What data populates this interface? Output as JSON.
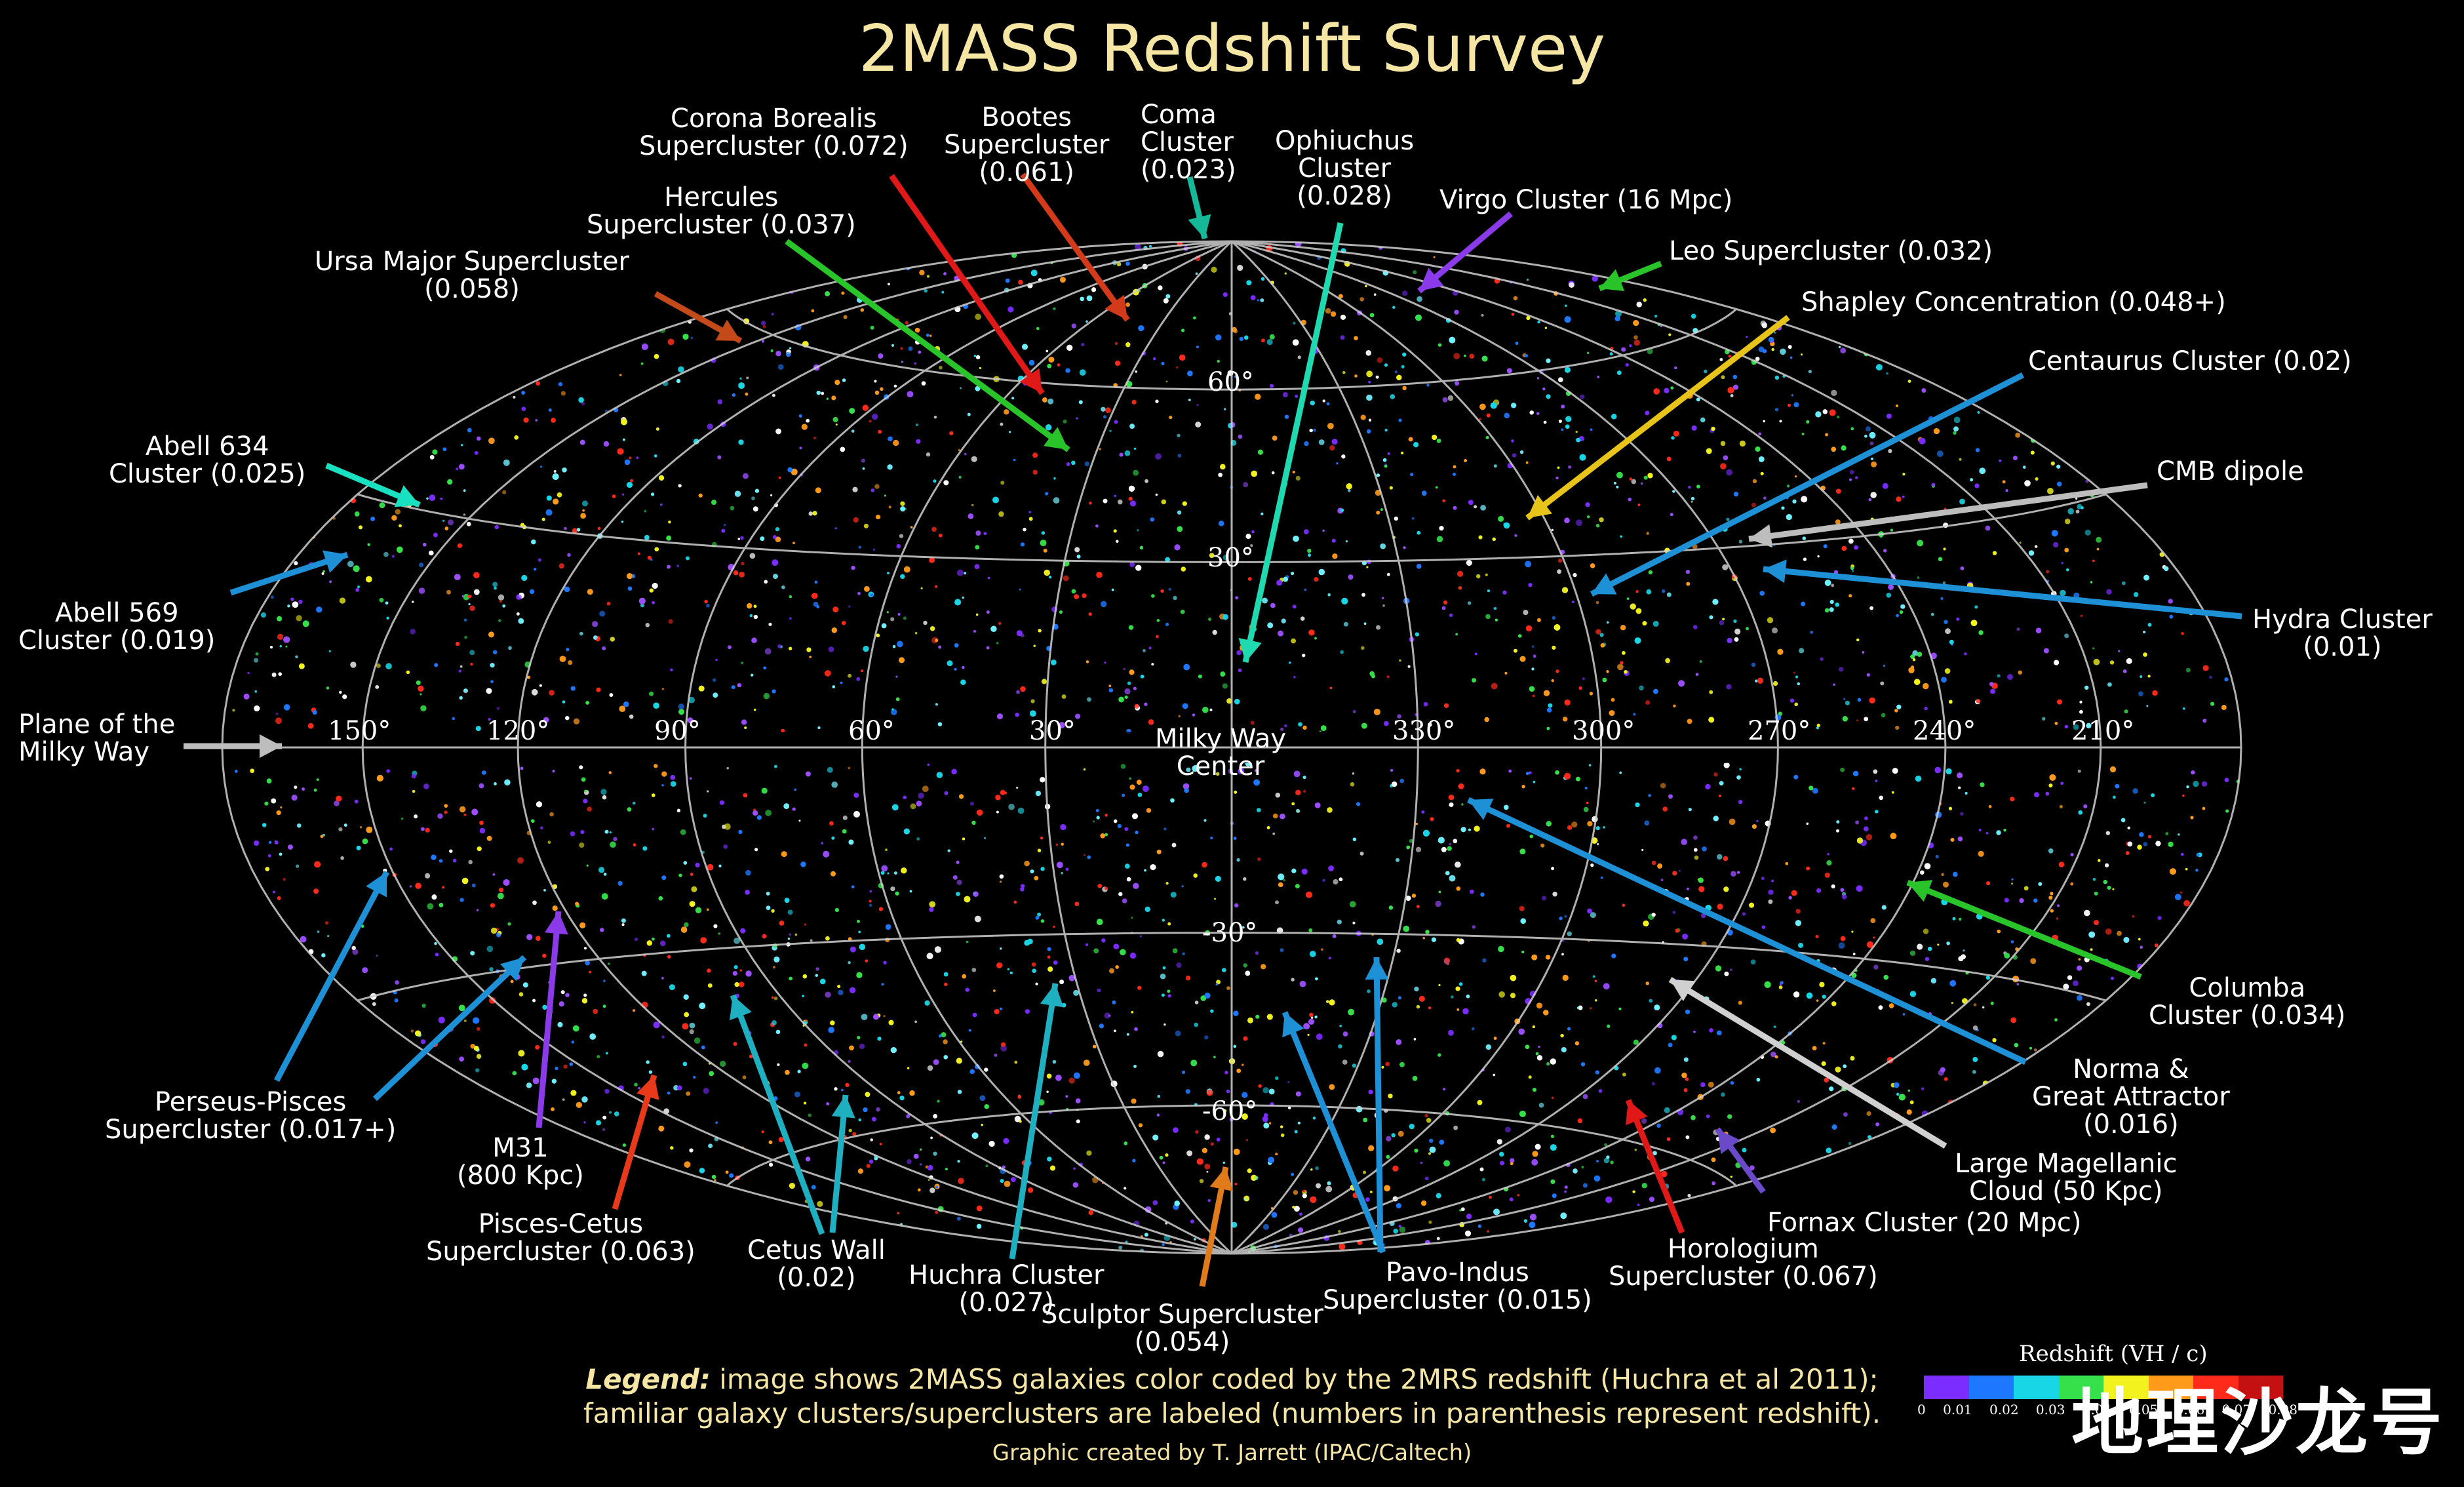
{
  "title": "2MASS Redshift Survey",
  "labels": {
    "corona_borealis": "Corona Borealis\nSupercluster (0.072)",
    "bootes": "Bootes\nSupercluster\n(0.061)",
    "coma": "Coma\nCluster\n(0.023)",
    "ophiuchus": "Ophiuchus\nCluster\n(0.028)",
    "virgo": "Virgo Cluster (16 Mpc)",
    "hercules": "Hercules\nSupercluster (0.037)",
    "leo": "Leo Supercluster (0.032)",
    "ursa_major": "Ursa Major Supercluster\n(0.058)",
    "shapley": "Shapley Concentration (0.048+)",
    "centaurus": "Centaurus Cluster (0.02)",
    "abell634": "Abell 634\nCluster (0.025)",
    "cmb": "CMB dipole",
    "abell569": "Abell 569\nCluster (0.019)",
    "hydra": "Hydra Cluster\n(0.01)",
    "plane": "Plane of the\nMilky Way",
    "milky_way_center": "Milky Way\nCenter",
    "columba": "Columba\nCluster (0.034)",
    "norma": "Norma &\nGreat Attractor\n(0.016)",
    "perseus": "Perseus-Pisces\nSupercluster (0.017+)",
    "m31": "M31\n(800 Kpc)",
    "lmc": "Large Magellanic\nCloud (50 Kpc)",
    "pisces_cetus": "Pisces-Cetus\nSupercluster (0.063)",
    "fornax": "Fornax Cluster (20 Mpc)",
    "cetus_wall": "Cetus Wall\n(0.02)",
    "huchra": "Huchra Cluster\n(0.027)",
    "pavo": "Pavo-Indus\nSupercluster (0.015)",
    "horologium": "Horologium\nSupercluster (0.067)",
    "sculptor": "Sculptor Supercluster\n(0.054)"
  },
  "ticks": {
    "lon": [
      "150°",
      "120°",
      "90°",
      "60°",
      "30°",
      "330°",
      "300°",
      "270°",
      "240°",
      "210°"
    ],
    "lat": [
      "60°",
      "30°",
      "-30°",
      "-60°"
    ]
  },
  "legend": {
    "bold": "Legend:",
    "line1": " image shows 2MASS galaxies color coded by the 2MRS redshift (Huchra et al 2011);",
    "line2": "familiar galaxy clusters/superclusters are labeled (numbers in parenthesis represent redshift)."
  },
  "credit": "Graphic created by T. Jarrett (IPAC/Caltech)",
  "colorbar": {
    "title": "Redshift (VH / c)",
    "ticks": [
      "0",
      "0.01",
      "0.02",
      "0.03",
      "0.04",
      "0.05",
      "0.06",
      "0.07",
      "0.08"
    ],
    "colors": [
      "#7b2cff",
      "#1e78ff",
      "#19d6e6",
      "#35e04a",
      "#f2f21e",
      "#ff9a1a",
      "#ff2a1a",
      "#c41010"
    ]
  },
  "watermark": "地理沙龙号",
  "colors": {
    "title": "#f5e6a3",
    "grid": "#cfcfcf",
    "galaxy_palette": [
      "#7b2cff",
      "#9b4dff",
      "#1e78ff",
      "#19d6e6",
      "#6ff0ff",
      "#35e04a",
      "#f2f21e",
      "#ff9a1a",
      "#ff2a1a",
      "#ffffff"
    ]
  }
}
